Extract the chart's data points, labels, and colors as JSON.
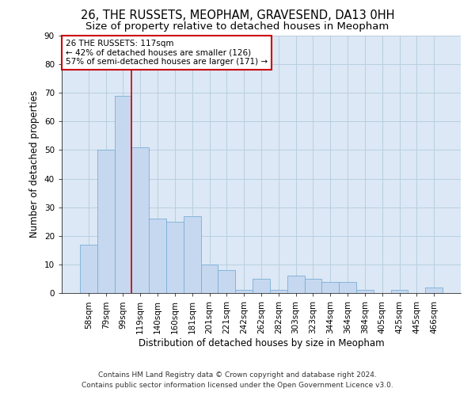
{
  "title_line1": "26, THE RUSSETS, MEOPHAM, GRAVESEND, DA13 0HH",
  "title_line2": "Size of property relative to detached houses in Meopham",
  "xlabel": "Distribution of detached houses by size in Meopham",
  "ylabel": "Number of detached properties",
  "categories": [
    "58sqm",
    "79sqm",
    "99sqm",
    "119sqm",
    "140sqm",
    "160sqm",
    "181sqm",
    "201sqm",
    "221sqm",
    "242sqm",
    "262sqm",
    "282sqm",
    "303sqm",
    "323sqm",
    "344sqm",
    "364sqm",
    "384sqm",
    "405sqm",
    "425sqm",
    "445sqm",
    "466sqm"
  ],
  "values": [
    17,
    50,
    69,
    51,
    26,
    25,
    27,
    10,
    8,
    1,
    5,
    1,
    6,
    5,
    4,
    4,
    1,
    0,
    1,
    0,
    2
  ],
  "bar_color": "#c5d8f0",
  "bar_edge_color": "#7aaed6",
  "annotation_box_color": "#ffffff",
  "annotation_border_color": "#cc0000",
  "reference_line_color": "#cc0000",
  "reference_line_x": 2.5,
  "annotation_text_line1": "26 THE RUSSETS: 117sqm",
  "annotation_text_line2": "← 42% of detached houses are smaller (126)",
  "annotation_text_line3": "57% of semi-detached houses are larger (171) →",
  "ylim": [
    0,
    90
  ],
  "yticks": [
    0,
    10,
    20,
    30,
    40,
    50,
    60,
    70,
    80,
    90
  ],
  "footnote_line1": "Contains HM Land Registry data © Crown copyright and database right 2024.",
  "footnote_line2": "Contains public sector information licensed under the Open Government Licence v3.0.",
  "bg_color": "#ffffff",
  "plot_bg_color": "#dce8f5",
  "grid_color": "#b8cfe0",
  "title_fontsize": 10.5,
  "subtitle_fontsize": 9.5,
  "axis_label_fontsize": 8.5,
  "tick_fontsize": 7.5,
  "annotation_fontsize": 7.5,
  "footnote_fontsize": 6.5
}
